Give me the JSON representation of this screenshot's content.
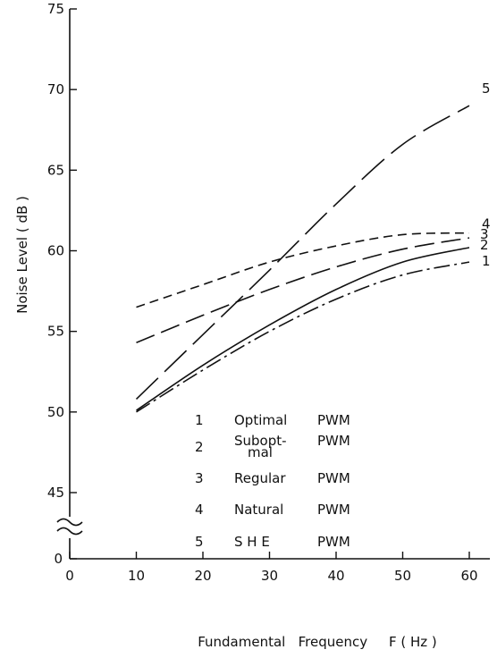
{
  "chart_data": {
    "type": "line",
    "xlabel": "Fundamental   Frequency     F ( Hz )",
    "ylabel": "Noise  Level  ( dB )",
    "xlim": [
      0,
      60
    ],
    "ylim": [
      43,
      75
    ],
    "y_break": true,
    "y_break_symbol": "≈",
    "y_origin_label": "0",
    "x_ticks": [
      0,
      10,
      20,
      30,
      40,
      50,
      60
    ],
    "y_ticks": [
      45,
      50,
      55,
      60,
      65,
      70,
      75
    ],
    "grid": false,
    "legend_position": "bottom-center",
    "legend": [
      {
        "number": "1",
        "label": "Optimal",
        "suffix": "PWM"
      },
      {
        "number": "2",
        "label": "Subopt-\nmal",
        "suffix": "PWM"
      },
      {
        "number": "3",
        "label": "Regular",
        "suffix": "PWM"
      },
      {
        "number": "4",
        "label": "Natural",
        "suffix": "PWM"
      },
      {
        "number": "5",
        "label": "S H E",
        "suffix": "PWM"
      }
    ],
    "series": [
      {
        "label": "1",
        "dash": "dash-dot",
        "points": [
          [
            10,
            50.0
          ],
          [
            20,
            52.6
          ],
          [
            30,
            55.0
          ],
          [
            40,
            57.0
          ],
          [
            50,
            58.5
          ],
          [
            60,
            59.3
          ]
        ]
      },
      {
        "label": "2",
        "dash": "solid",
        "points": [
          [
            10,
            50.1
          ],
          [
            20,
            52.9
          ],
          [
            30,
            55.4
          ],
          [
            40,
            57.6
          ],
          [
            50,
            59.3
          ],
          [
            60,
            60.2
          ]
        ]
      },
      {
        "label": "3",
        "dash": "long-dash",
        "points": [
          [
            10,
            54.3
          ],
          [
            20,
            56.0
          ],
          [
            30,
            57.6
          ],
          [
            40,
            59.0
          ],
          [
            50,
            60.1
          ],
          [
            60,
            60.8
          ]
        ]
      },
      {
        "label": "4",
        "dash": "short-dash",
        "points": [
          [
            10,
            56.5
          ],
          [
            20,
            57.9
          ],
          [
            30,
            59.3
          ],
          [
            40,
            60.3
          ],
          [
            50,
            61.0
          ],
          [
            60,
            61.1
          ]
        ]
      },
      {
        "label": "5",
        "dash": "very-long-dash",
        "points": [
          [
            10,
            50.8
          ],
          [
            20,
            54.8
          ],
          [
            30,
            58.8
          ],
          [
            40,
            62.9
          ],
          [
            50,
            66.6
          ],
          [
            60,
            69.0
          ]
        ]
      }
    ]
  }
}
